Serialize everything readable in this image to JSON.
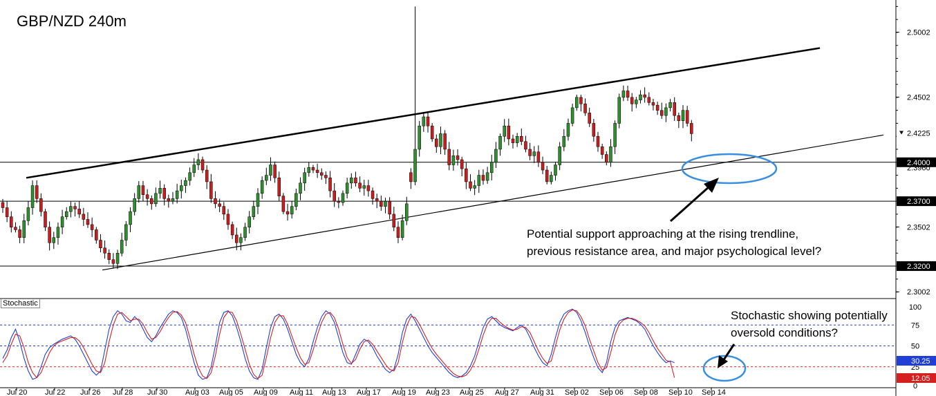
{
  "title": "GBP/NZD 240m",
  "annotations": {
    "price_note": [
      "Potential support approaching at the rising trendline,",
      "previous resistance area, and major psychological level?"
    ],
    "stoch_note": [
      "Stochastic showing potentially",
      "oversold conditions?"
    ]
  },
  "colors": {
    "up_candle": "#2f8f2f",
    "down_candle": "#c81e1e",
    "stoch_k": "#1f3fd6",
    "stoch_d": "#d61f1f",
    "ellipse": "#3a8ee0",
    "current_price_marker": "#000000",
    "k_badge": "#1f3fd6",
    "d_badge": "#d61f1f"
  },
  "chart_data": [
    {
      "type": "candlestick",
      "title": "GBP/NZD 240m",
      "ylim": [
        2.295,
        2.525
      ],
      "y_ticks": [
        "2.5002",
        "2.4502",
        "2.4225",
        "2.4000",
        "2.3960",
        "2.3700",
        "2.3502",
        "2.3200",
        "2.3002"
      ],
      "x_ticks": [
        "Jul 20",
        "Jul 22",
        "Jul 26",
        "Jul 28",
        "Jul 30",
        "Aug 03",
        "Aug 05",
        "Aug 09",
        "Aug 11",
        "Aug 13",
        "Aug 17",
        "Aug 19",
        "Aug 23",
        "Aug 25",
        "Aug 27",
        "Aug 31",
        "Sep 02",
        "Sep 06",
        "Sep 08",
        "Sep 10",
        "Sep 14"
      ],
      "current_price": "2.4225",
      "horizontal_levels": [
        {
          "label": "2.4000",
          "value": 2.4
        },
        {
          "label": "2.3700",
          "value": 2.37
        },
        {
          "label": "2.3200",
          "value": 2.32
        }
      ],
      "trendlines": [
        {
          "name": "upper channel",
          "points": [
            [
              "Jul 21",
              2.388
            ],
            [
              "Sep 15",
              2.488
            ]
          ]
        },
        {
          "name": "rising support",
          "points": [
            [
              "Jul 27",
              2.317
            ],
            [
              "Sep 20",
              2.421
            ]
          ]
        }
      ],
      "series": [
        {
          "name": "close",
          "values": [
            2.365,
            2.358,
            2.35,
            2.348,
            2.342,
            2.355,
            2.365,
            2.382,
            2.372,
            2.362,
            2.35,
            2.338,
            2.342,
            2.35,
            2.358,
            2.362,
            2.366,
            2.364,
            2.36,
            2.356,
            2.352,
            2.348,
            2.34,
            2.334,
            2.33,
            2.325,
            2.322,
            2.33,
            2.34,
            2.352,
            2.362,
            2.372,
            2.382,
            2.375,
            2.372,
            2.368,
            2.376,
            2.38,
            2.372,
            2.37,
            2.372,
            2.378,
            2.382,
            2.386,
            2.392,
            2.398,
            2.402,
            2.394,
            2.385,
            2.372,
            2.368,
            2.366,
            2.36,
            2.352,
            2.344,
            2.338,
            2.342,
            2.35,
            2.358,
            2.366,
            2.376,
            2.386,
            2.39,
            2.398,
            2.388,
            2.374,
            2.362,
            2.36,
            2.366,
            2.376,
            2.384,
            2.392,
            2.396,
            2.394,
            2.392,
            2.39,
            2.388,
            2.378,
            2.37,
            2.369,
            2.376,
            2.384,
            2.388,
            2.384,
            2.38,
            2.382,
            2.378,
            2.372,
            2.37,
            2.366,
            2.37,
            2.36,
            2.35,
            2.342,
            2.355,
            2.368,
            2.385,
            2.41,
            2.428,
            2.435,
            2.428,
            2.418,
            2.412,
            2.422,
            2.41,
            2.398,
            2.405,
            2.402,
            2.395,
            2.385,
            2.38,
            2.382,
            2.39,
            2.386,
            2.392,
            2.4,
            2.41,
            2.42,
            2.428,
            2.418,
            2.415,
            2.42,
            2.416,
            2.41,
            2.405,
            2.408,
            2.4,
            2.394,
            2.385,
            2.39,
            2.398,
            2.412,
            2.42,
            2.43,
            2.442,
            2.45,
            2.445,
            2.438,
            2.43,
            2.42,
            2.412,
            2.406,
            2.4,
            2.412,
            2.43,
            2.45,
            2.455,
            2.45,
            2.445,
            2.448,
            2.452,
            2.45,
            2.446,
            2.444,
            2.44,
            2.436,
            2.442,
            2.446,
            2.436,
            2.432,
            2.44,
            2.43,
            2.422
          ]
        }
      ]
    },
    {
      "type": "line",
      "title": "Stochastic",
      "ylim": [
        0,
        100
      ],
      "y_ticks": [
        "100",
        "75",
        "50",
        "25",
        "0"
      ],
      "reference_levels": [
        75,
        50,
        25
      ],
      "badges": [
        {
          "name": "%K",
          "label": "30.25"
        },
        {
          "name": "%D",
          "label": "12.05"
        }
      ],
      "series": [
        {
          "name": "%K",
          "values": [
            35,
            45,
            60,
            70,
            55,
            35,
            20,
            10,
            12,
            25,
            40,
            48,
            52,
            55,
            58,
            60,
            62,
            58,
            50,
            40,
            30,
            20,
            15,
            20,
            45,
            70,
            85,
            92,
            88,
            80,
            78,
            85,
            80,
            70,
            60,
            55,
            62,
            72,
            80,
            88,
            92,
            90,
            84,
            70,
            50,
            30,
            15,
            10,
            12,
            25,
            50,
            78,
            90,
            92,
            86,
            72,
            55,
            35,
            20,
            12,
            10,
            22,
            48,
            72,
            85,
            88,
            82,
            70,
            55,
            40,
            30,
            25,
            35,
            55,
            72,
            85,
            92,
            88,
            78,
            60,
            42,
            30,
            28,
            40,
            52,
            58,
            55,
            48,
            38,
            30,
            22,
            18,
            22,
            40,
            66,
            82,
            88,
            80,
            70,
            60,
            50,
            42,
            36,
            30,
            24,
            18,
            14,
            12,
            14,
            18,
            26,
            38,
            55,
            72,
            82,
            85,
            80,
            75,
            72,
            70,
            68,
            72,
            75,
            70,
            60,
            48,
            38,
            30,
            26,
            40,
            60,
            78,
            88,
            92,
            94,
            90,
            80,
            66,
            50,
            36,
            24,
            18,
            30,
            55,
            72,
            80,
            82,
            84,
            82,
            80,
            76,
            70,
            60,
            50,
            42,
            35,
            30,
            32,
            30
          ]
        },
        {
          "name": "%D",
          "values": [
            30,
            38,
            52,
            64,
            62,
            48,
            30,
            18,
            12,
            18,
            30,
            42,
            50,
            54,
            56,
            58,
            60,
            60,
            56,
            48,
            38,
            28,
            20,
            18,
            30,
            55,
            75,
            88,
            90,
            85,
            80,
            82,
            82,
            76,
            66,
            58,
            60,
            67,
            76,
            84,
            90,
            91,
            87,
            78,
            60,
            40,
            24,
            14,
            11,
            18,
            38,
            64,
            84,
            91,
            90,
            80,
            64,
            46,
            28,
            16,
            11,
            15,
            36,
            60,
            78,
            86,
            86,
            76,
            62,
            48,
            36,
            28,
            30,
            45,
            63,
            78,
            88,
            90,
            84,
            70,
            52,
            36,
            29,
            34,
            46,
            55,
            57,
            52,
            44,
            36,
            28,
            22,
            20,
            30,
            54,
            74,
            85,
            84,
            76,
            66,
            56,
            47,
            40,
            34,
            28,
            22,
            17,
            14,
            13,
            15,
            21,
            31,
            46,
            63,
            76,
            83,
            83,
            78,
            74,
            71,
            69,
            70,
            73,
            72,
            66,
            55,
            44,
            35,
            29,
            32,
            50,
            69,
            82,
            90,
            93,
            92,
            85,
            74,
            58,
            44,
            30,
            21,
            24,
            42,
            63,
            76,
            81,
            83,
            83,
            81,
            78,
            74,
            66,
            56,
            47,
            40,
            33,
            31,
            12
          ]
        }
      ]
    }
  ]
}
